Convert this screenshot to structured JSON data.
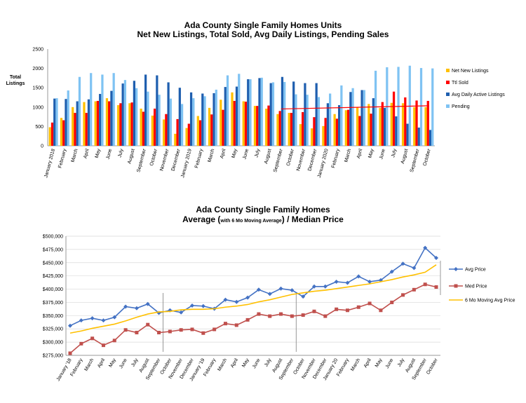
{
  "chart_data": [
    {
      "type": "bar",
      "title": "Ada County Single Family Homes Units",
      "subtitle": "Net New Listings, Total Sold, Avg Daily Listings, Pending Sales",
      "ylabel": "Total Listings",
      "ylim": [
        0,
        2500
      ],
      "yticks": [
        "0",
        "500",
        "1000",
        "1500",
        "2000",
        "2500"
      ],
      "grid": false,
      "legend": "right",
      "categories": [
        "January 2018",
        "February",
        "March",
        "April",
        "May",
        "June",
        "July",
        "August",
        "September",
        "October",
        "November",
        "December",
        "January 2019",
        "February",
        "March",
        "April",
        "May",
        "June",
        "July",
        "August",
        "September",
        "October",
        "November",
        "December",
        "January 2020",
        "February",
        "March",
        "April",
        "May",
        "June",
        "July",
        "August",
        "September",
        "October"
      ],
      "series": [
        {
          "name": "Net New Listings",
          "color": "#FFC000",
          "values": [
            480,
            720,
            1000,
            1130,
            1150,
            1230,
            1050,
            1100,
            960,
            780,
            680,
            310,
            460,
            770,
            980,
            1190,
            1380,
            1150,
            1030,
            960,
            820,
            850,
            560,
            450,
            510,
            820,
            920,
            1000,
            1080,
            980,
            1110,
            1100,
            1000,
            1000
          ]
        },
        {
          "name": "Ttl Sold",
          "color": "#FF0000",
          "values": [
            600,
            660,
            850,
            850,
            1160,
            1150,
            1100,
            1120,
            880,
            960,
            820,
            690,
            570,
            660,
            810,
            930,
            1160,
            1140,
            1030,
            1040,
            900,
            850,
            870,
            740,
            720,
            700,
            930,
            770,
            830,
            1130,
            1400,
            1250,
            1170,
            1160
          ]
        },
        {
          "name": "Avg Daily Active Listings",
          "color": "#1F5FAF",
          "values": [
            1220,
            1210,
            1150,
            1200,
            1340,
            1420,
            1610,
            1680,
            1840,
            1820,
            1640,
            1500,
            1380,
            1350,
            1360,
            1520,
            1530,
            1720,
            1750,
            1620,
            1780,
            1660,
            1620,
            1620,
            1100,
            1050,
            1390,
            1440,
            1230,
            980,
            760,
            570,
            470,
            410
          ]
        },
        {
          "name": "Pending",
          "color": "#7FC3F3",
          "values": [
            1230,
            1430,
            1780,
            1880,
            1840,
            1880,
            1700,
            1490,
            1400,
            1320,
            1220,
            1080,
            1230,
            1280,
            1450,
            1820,
            1860,
            1720,
            1760,
            1640,
            1650,
            1330,
            1320,
            1260,
            1350,
            1560,
            1490,
            1440,
            1940,
            2030,
            2040,
            2070,
            2010,
            2000
          ]
        }
      ],
      "trendline": {
        "color": "#FF0000",
        "series": "Ttl Sold"
      }
    },
    {
      "type": "line",
      "title": "Ada County Single Family Homes",
      "subtitle_main": "Average (",
      "subtitle_small": "with 6 Mo Moving Average",
      "subtitle_end": ") / Median Price",
      "ylim": [
        275000,
        500000
      ],
      "yticks": [
        "$275,000",
        "$300,000",
        "$325,000",
        "$350,000",
        "$375,000",
        "$400,000",
        "$425,000",
        "$450,000",
        "$475,000",
        "$500,000"
      ],
      "grid": true,
      "legend": "right",
      "categories": [
        "January '18",
        "February",
        "March",
        "April",
        "May",
        "June",
        "July",
        "August",
        "September",
        "October",
        "November",
        "December",
        "January '19",
        "February",
        "March",
        "April",
        "May",
        "June",
        "July",
        "August",
        "September",
        "October",
        "November",
        "December",
        "January 20",
        "February",
        "March",
        "April",
        "May",
        "June",
        "July",
        "August",
        "September",
        "October"
      ],
      "series": [
        {
          "name": "Avg Price",
          "color": "#4472C4",
          "marker": "diamond",
          "values": [
            331000,
            341000,
            345000,
            341000,
            347000,
            367000,
            364000,
            372000,
            355000,
            360000,
            356000,
            369000,
            368000,
            363000,
            380000,
            376000,
            384000,
            399000,
            391000,
            401000,
            398000,
            386000,
            405000,
            405000,
            414000,
            412000,
            424000,
            414000,
            417000,
            433000,
            448000,
            440000,
            478000,
            459000
          ]
        },
        {
          "name": "Med Price",
          "color": "#C0504D",
          "marker": "square",
          "values": [
            279000,
            297000,
            307000,
            294000,
            303000,
            323000,
            318000,
            333000,
            318000,
            320000,
            323000,
            324000,
            317000,
            324000,
            335000,
            332000,
            342000,
            353000,
            349000,
            353000,
            349000,
            351000,
            358000,
            349000,
            362000,
            360000,
            366000,
            373000,
            360000,
            375000,
            389000,
            399000,
            409000,
            404000
          ]
        },
        {
          "name": "6 Mo Moving Avg Price",
          "color": "#FFC000",
          "marker": "none",
          "values": [
            317000,
            321000,
            326000,
            330000,
            334000,
            340000,
            347000,
            353000,
            357000,
            358000,
            361000,
            362000,
            362000,
            363000,
            366000,
            368000,
            371000,
            376000,
            380000,
            385000,
            390000,
            393000,
            396000,
            398000,
            401000,
            404000,
            407000,
            410000,
            414000,
            418000,
            423000,
            427000,
            432000,
            446000
          ]
        }
      ],
      "year_dividers_after": [
        "September",
        "September"
      ]
    }
  ]
}
